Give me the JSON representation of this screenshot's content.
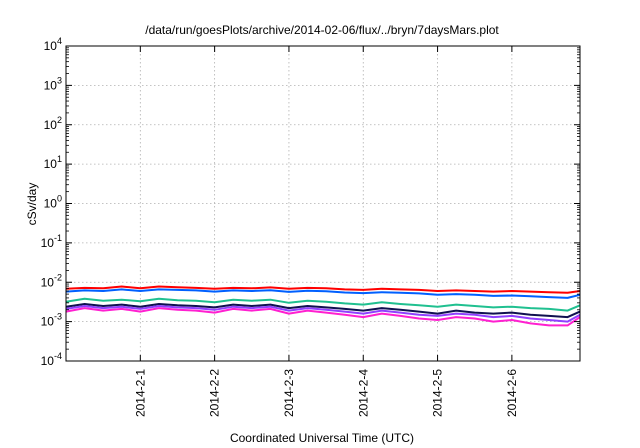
{
  "chart_data": {
    "type": "line",
    "title": "/data/run/goesPlots/archive/2014-02-06/flux/../bryn/7daysMars.plot",
    "xlabel": "Coordinated Universal Time (UTC)",
    "ylabel": "cSv/day",
    "y_scale": "log",
    "ylim": [
      0.0001,
      10000
    ],
    "y_ticks": [
      {
        "value": 0.0001,
        "base": "10",
        "exp": "-4"
      },
      {
        "value": 0.001,
        "base": "10",
        "exp": "-3"
      },
      {
        "value": 0.01,
        "base": "10",
        "exp": "-2"
      },
      {
        "value": 0.1,
        "base": "10",
        "exp": "-1"
      },
      {
        "value": 1,
        "base": "10",
        "exp": "0"
      },
      {
        "value": 10,
        "base": "10",
        "exp": "1"
      },
      {
        "value": 100,
        "base": "10",
        "exp": "2"
      },
      {
        "value": 1000,
        "base": "10",
        "exp": "3"
      },
      {
        "value": 10000,
        "base": "10",
        "exp": "4"
      }
    ],
    "xlim": [
      "2014-01-31T00:00",
      "2014-02-06T22:00"
    ],
    "x_ticks": [
      {
        "value": "2014-02-01T00:00",
        "label": "2014-2-1"
      },
      {
        "value": "2014-02-02T00:00",
        "label": "2014-2-2"
      },
      {
        "value": "2014-02-03T00:00",
        "label": "2014-2-3"
      },
      {
        "value": "2014-02-04T00:00",
        "label": "2014-2-4"
      },
      {
        "value": "2014-02-05T00:00",
        "label": "2014-2-5"
      },
      {
        "value": "2014-02-06T00:00",
        "label": "2014-2-6"
      }
    ],
    "grid": true,
    "x": [
      "2014-01-31T00:00",
      "2014-01-31T06:00",
      "2014-01-31T12:00",
      "2014-01-31T18:00",
      "2014-02-01T00:00",
      "2014-02-01T06:00",
      "2014-02-01T12:00",
      "2014-02-01T18:00",
      "2014-02-02T00:00",
      "2014-02-02T06:00",
      "2014-02-02T12:00",
      "2014-02-02T18:00",
      "2014-02-03T00:00",
      "2014-02-03T06:00",
      "2014-02-03T12:00",
      "2014-02-03T18:00",
      "2014-02-04T00:00",
      "2014-02-04T06:00",
      "2014-02-04T12:00",
      "2014-02-04T18:00",
      "2014-02-05T00:00",
      "2014-02-05T06:00",
      "2014-02-05T12:00",
      "2014-02-05T18:00",
      "2014-02-06T00:00",
      "2014-02-06T06:00",
      "2014-02-06T12:00",
      "2014-02-06T18:00",
      "2014-02-06T22:00"
    ],
    "series": [
      {
        "color": "#ff0000",
        "values": [
          0.0068,
          0.0072,
          0.007,
          0.0078,
          0.007,
          0.0078,
          0.0075,
          0.0072,
          0.0068,
          0.0072,
          0.007,
          0.0074,
          0.0068,
          0.0072,
          0.007,
          0.0066,
          0.0064,
          0.0068,
          0.0066,
          0.0064,
          0.006,
          0.0062,
          0.006,
          0.0058,
          0.006,
          0.0058,
          0.0056,
          0.0054,
          0.006
        ]
      },
      {
        "color": "#0060ff",
        "values": [
          0.0058,
          0.0062,
          0.006,
          0.0066,
          0.006,
          0.0066,
          0.0064,
          0.0062,
          0.0058,
          0.0062,
          0.006,
          0.0063,
          0.0057,
          0.0061,
          0.0059,
          0.0055,
          0.0053,
          0.0056,
          0.0054,
          0.0052,
          0.0048,
          0.005,
          0.0048,
          0.0045,
          0.0046,
          0.0044,
          0.0042,
          0.004,
          0.0048
        ]
      },
      {
        "color": "#20c090",
        "values": [
          0.0032,
          0.0038,
          0.0034,
          0.0036,
          0.0033,
          0.0038,
          0.0035,
          0.0034,
          0.0031,
          0.0036,
          0.0034,
          0.0036,
          0.003,
          0.0034,
          0.0032,
          0.0029,
          0.0027,
          0.0031,
          0.0028,
          0.0026,
          0.0024,
          0.0027,
          0.0025,
          0.0023,
          0.0024,
          0.0022,
          0.0021,
          0.0019,
          0.0026
        ]
      },
      {
        "color": "#101050",
        "values": [
          0.0024,
          0.0028,
          0.0025,
          0.0027,
          0.0024,
          0.0028,
          0.0026,
          0.0025,
          0.0023,
          0.0027,
          0.0025,
          0.0027,
          0.0022,
          0.0025,
          0.0023,
          0.0021,
          0.0019,
          0.0022,
          0.002,
          0.0018,
          0.0016,
          0.0019,
          0.0017,
          0.0016,
          0.0017,
          0.0015,
          0.0014,
          0.0013,
          0.0018
        ]
      },
      {
        "color": "#9040ff",
        "values": [
          0.0021,
          0.0025,
          0.0022,
          0.0024,
          0.0021,
          0.0025,
          0.0023,
          0.0022,
          0.002,
          0.0024,
          0.0022,
          0.0024,
          0.0019,
          0.0022,
          0.002,
          0.0018,
          0.0016,
          0.0019,
          0.0017,
          0.0015,
          0.0014,
          0.0016,
          0.0015,
          0.0013,
          0.0014,
          0.0012,
          0.0011,
          0.001,
          0.0015
        ]
      },
      {
        "color": "#ff20d0",
        "values": [
          0.0018,
          0.0022,
          0.0019,
          0.0021,
          0.0018,
          0.0022,
          0.002,
          0.0019,
          0.0017,
          0.0021,
          0.0019,
          0.0021,
          0.0016,
          0.0019,
          0.0017,
          0.0015,
          0.0013,
          0.0016,
          0.0014,
          0.0012,
          0.0011,
          0.0013,
          0.0012,
          0.001,
          0.0011,
          0.0009,
          0.0008,
          0.0008,
          0.0013
        ]
      }
    ]
  }
}
